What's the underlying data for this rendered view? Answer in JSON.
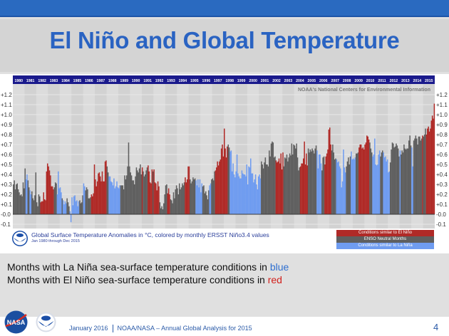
{
  "slide": {
    "title": "El Niño and Global Temperature",
    "line1_prefix": "Months with La Niña sea-surface temperature conditions in ",
    "line1_color_word": "blue",
    "line2_prefix": "Months with El Niño sea-surface temperature conditions in ",
    "line2_color_word": "red",
    "footer_date": "January 2016",
    "footer_title": "NOAA/NASA – Annual  Global  Analysis  for  2015",
    "page_number": "4"
  },
  "colors": {
    "el_nino": "#b02a27",
    "neutral": "#5f5f5f",
    "la_nina": "#6f9cf0",
    "header": "#1a1a8c"
  },
  "chart_data": {
    "type": "bar",
    "title": "Global Surface Temperature Anomalies in °C, colored by monthly ERSST Niño3.4 values",
    "subtitle": "Jan 1980 through Dec 2015",
    "source": "NOAA's National Centers for Environmental Information",
    "ylabel": "°C",
    "ylim": [
      -0.1,
      1.2
    ],
    "yticks": [
      "+1.2",
      "+1.1",
      "+1.0",
      "+0.9",
      "+0.8",
      "+0.7",
      "+0.6",
      "+0.5",
      "+0.4",
      "+0.3",
      "+0.2",
      "+0.1",
      "-0.0",
      "-0.1"
    ],
    "years": [
      "1980",
      "1981",
      "1982",
      "1983",
      "1984",
      "1985",
      "1986",
      "1987",
      "1988",
      "1989",
      "1990",
      "1991",
      "1992",
      "1993",
      "1994",
      "1995",
      "1996",
      "1997",
      "1998",
      "1999",
      "2000",
      "2001",
      "2002",
      "2003",
      "2004",
      "2005",
      "2006",
      "2007",
      "2008",
      "2009",
      "2010",
      "2011",
      "2012",
      "2013",
      "2014",
      "2015"
    ],
    "legend": [
      {
        "label": "Conditions similar to El Niño",
        "key": "E"
      },
      {
        "label": "ENSO Neutral Months",
        "key": "N"
      },
      {
        "label": "Conditions similar to La Niña",
        "key": "L"
      }
    ],
    "states_legend": {
      "E": "El Niño",
      "N": "Neutral",
      "L": "La Niña"
    },
    "monthly": [
      {
        "year": "1980",
        "values": [
          0.3,
          0.34,
          0.25,
          0.3,
          0.31,
          0.25,
          0.22,
          0.19,
          0.2,
          0.18,
          0.32,
          0.26
        ],
        "states": "NNNNNNNNNNNN"
      },
      {
        "year": "1981",
        "values": [
          0.46,
          0.35,
          0.4,
          0.34,
          0.27,
          0.24,
          0.2,
          0.23,
          0.16,
          0.14,
          0.19,
          0.42
        ],
        "states": "NLLNNLLNNNNN"
      },
      {
        "year": "1982",
        "values": [
          0.12,
          0.08,
          0.2,
          0.18,
          0.12,
          0.13,
          0.13,
          0.22,
          0.15,
          0.14,
          0.43,
          0.51
        ],
        "states": "NNNNEEEEEEEE"
      },
      {
        "year": "1983",
        "values": [
          0.48,
          0.44,
          0.39,
          0.28,
          0.28,
          0.25,
          0.27,
          0.32,
          0.31,
          0.2,
          0.43,
          0.26
        ],
        "states": "EEEEEENNNLLL"
      },
      {
        "year": "1984",
        "values": [
          0.27,
          0.22,
          0.16,
          0.14,
          0.1,
          0.13,
          0.11,
          0.16,
          0.12,
          0.08,
          0.03,
          -0.08
        ],
        "states": "LLNLLLLNNNLL"
      },
      {
        "year": "1985",
        "values": [
          0.17,
          0.09,
          0.18,
          0.19,
          0.13,
          0.14,
          0.08,
          0.13,
          0.14,
          0.11,
          0.12,
          0.19
        ],
        "states": "LLLLLLLLNNNN"
      },
      {
        "year": "1986",
        "values": [
          0.31,
          0.28,
          0.24,
          0.27,
          0.25,
          0.16,
          0.16,
          0.17,
          0.2,
          0.18,
          0.21,
          0.5
        ],
        "states": "LLNNNNNNEEEE"
      },
      {
        "year": "1987",
        "values": [
          0.35,
          0.28,
          0.33,
          0.41,
          0.42,
          0.38,
          0.33,
          0.43,
          0.33,
          0.33,
          0.53,
          0.54
        ],
        "states": "EEEEEEEEEEEE"
      },
      {
        "year": "1988",
        "values": [
          0.48,
          0.42,
          0.38,
          0.38,
          0.33,
          0.32,
          0.29,
          0.36,
          0.26,
          0.28,
          0.33,
          0.27
        ],
        "states": "NNLLLLLLLLLL"
      },
      {
        "year": "1989",
        "values": [
          0.26,
          0.29,
          0.29,
          0.29,
          0.29,
          0.25,
          0.39,
          0.35,
          0.39,
          0.48,
          0.72,
          0.48
        ],
        "states": "LLNNNNNNNNNN"
      },
      {
        "year": "1990",
        "values": [
          0.42,
          0.39,
          0.34,
          0.34,
          0.3,
          0.38,
          0.47,
          0.44,
          0.42,
          0.46,
          0.5,
          0.4
        ],
        "states": "NNNNNNNNNNNN"
      },
      {
        "year": "1991",
        "values": [
          0.47,
          0.43,
          0.38,
          0.4,
          0.44,
          0.47,
          0.49,
          0.43,
          0.32,
          0.31,
          0.45,
          0.43
        ],
        "states": "ENNNNNEEEEEN"
      },
      {
        "year": "1992",
        "values": [
          0.45,
          0.32,
          0.31,
          0.24,
          0.33,
          0.28,
          0.12,
          0.06,
          0.08,
          0.05,
          0.11,
          0.2
        ],
        "states": "EEEEEENNNNNN"
      },
      {
        "year": "1993",
        "values": [
          0.29,
          0.3,
          0.21,
          0.26,
          0.2,
          0.15,
          0.14,
          0.11,
          0.22,
          0.16,
          0.25,
          0.29
        ],
        "states": "NNEEENNNNNNN"
      },
      {
        "year": "1994",
        "values": [
          0.26,
          0.2,
          0.31,
          0.25,
          0.27,
          0.31,
          0.29,
          0.32,
          0.37,
          0.32,
          0.35,
          0.48
        ],
        "states": "NNNNNNNNEEEE"
      },
      {
        "year": "1995",
        "values": [
          0.48,
          0.35,
          0.31,
          0.33,
          0.37,
          0.35,
          0.36,
          0.34,
          0.29,
          0.35,
          0.27,
          0.35
        ],
        "states": "ENNNNNNLLLLL"
      },
      {
        "year": "1996",
        "values": [
          0.22,
          0.31,
          0.28,
          0.29,
          0.21,
          0.23,
          0.19,
          0.15,
          0.24,
          0.29,
          0.31,
          0.35
        ],
        "states": "LLNNNNNNNLLN"
      },
      {
        "year": "1997",
        "values": [
          0.36,
          0.34,
          0.43,
          0.44,
          0.47,
          0.53,
          0.49,
          0.53,
          0.55,
          0.66,
          0.7,
          0.58
        ],
        "states": "NNNEEEEEEEEE"
      },
      {
        "year": "1998",
        "values": [
          0.86,
          0.66,
          0.57,
          0.68,
          0.7,
          0.67,
          0.63,
          0.64,
          0.43,
          0.51,
          0.4,
          0.37
        ],
        "states": "EEEENNLLLLLL"
      },
      {
        "year": "1999",
        "values": [
          0.43,
          0.6,
          0.41,
          0.38,
          0.36,
          0.36,
          0.44,
          0.41,
          0.4,
          0.4,
          0.38,
          0.5
        ],
        "states": "LLLLLLLLLLLL"
      },
      {
        "year": "2000",
        "values": [
          0.3,
          0.48,
          0.47,
          0.56,
          0.41,
          0.41,
          0.32,
          0.35,
          0.4,
          0.3,
          0.25,
          0.38
        ],
        "states": "LLLLLLLLLLLL"
      },
      {
        "year": "2001",
        "values": [
          0.4,
          0.36,
          0.53,
          0.5,
          0.46,
          0.52,
          0.57,
          0.5,
          0.5,
          0.48,
          0.64,
          0.58
        ],
        "states": "LLNNNNNNNNNN"
      },
      {
        "year": "2002",
        "values": [
          0.71,
          0.73,
          0.72,
          0.57,
          0.58,
          0.54,
          0.52,
          0.53,
          0.56,
          0.51,
          0.61,
          0.45
        ],
        "states": "NNNNNEEEEEEE"
      },
      {
        "year": "2003",
        "values": [
          0.62,
          0.48,
          0.57,
          0.56,
          0.6,
          0.53,
          0.57,
          0.61,
          0.59,
          0.71,
          0.6,
          0.7
        ],
        "states": "ENNNNNNNNNNN"
      },
      {
        "year": "2004",
        "values": [
          0.69,
          0.66,
          0.71,
          0.57,
          0.44,
          0.47,
          0.48,
          0.51,
          0.51,
          0.56,
          0.73,
          0.5
        ],
        "states": "NNNNNNEEEEEE"
      },
      {
        "year": "2005",
        "values": [
          0.61,
          0.49,
          0.66,
          0.62,
          0.65,
          0.63,
          0.66,
          0.64,
          0.61,
          0.66,
          0.69,
          0.64
        ],
        "states": "EENNNNNNNNNL"
      },
      {
        "year": "2006",
        "values": [
          0.46,
          0.6,
          0.6,
          0.51,
          0.44,
          0.57,
          0.58,
          0.5,
          0.58,
          0.61,
          0.65,
          0.85
        ],
        "states": "LLLLNNNEEEEE"
      },
      {
        "year": "2007",
        "values": [
          0.87,
          0.7,
          0.64,
          0.7,
          0.62,
          0.55,
          0.56,
          0.55,
          0.52,
          0.53,
          0.48,
          0.46
        ],
        "states": "EENNNNNLLLLL"
      },
      {
        "year": "2008",
        "values": [
          0.27,
          0.33,
          0.65,
          0.47,
          0.42,
          0.48,
          0.53,
          0.57,
          0.5,
          0.58,
          0.63,
          0.55
        ],
        "states": "LLLLLNNNNNLL"
      },
      {
        "year": "2009",
        "values": [
          0.56,
          0.55,
          0.57,
          0.61,
          0.61,
          0.62,
          0.67,
          0.7,
          0.7,
          0.66,
          0.67,
          0.65
        ],
        "states": "LLLNNNEEEEEE"
      },
      {
        "year": "2010",
        "values": [
          0.7,
          0.72,
          0.79,
          0.78,
          0.75,
          0.72,
          0.66,
          0.62,
          0.58,
          0.6,
          0.76,
          0.5
        ],
        "states": "EEEEENNNLLLL"
      },
      {
        "year": "2011",
        "values": [
          0.49,
          0.5,
          0.6,
          0.64,
          0.58,
          0.62,
          0.64,
          0.62,
          0.57,
          0.58,
          0.53,
          0.55
        ],
        "states": "LLLLNNNLLLLL"
      },
      {
        "year": "2012",
        "values": [
          0.42,
          0.43,
          0.52,
          0.65,
          0.72,
          0.71,
          0.67,
          0.68,
          0.71,
          0.69,
          0.66,
          0.58
        ],
        "states": "LLNNNNNNNNNN"
      },
      {
        "year": "2013",
        "values": [
          0.64,
          0.6,
          0.64,
          0.62,
          0.7,
          0.66,
          0.65,
          0.66,
          0.66,
          0.74,
          0.79,
          0.69
        ],
        "states": "LNNNNNNNNNNN"
      },
      {
        "year": "2014",
        "values": [
          0.67,
          0.48,
          0.74,
          0.76,
          0.79,
          0.76,
          0.7,
          0.78,
          0.78,
          0.74,
          0.76,
          0.79
        ],
        "states": "LLNNNNNNNNNE"
      },
      {
        "year": "2015",
        "values": [
          0.78,
          0.8,
          0.86,
          0.8,
          0.86,
          0.88,
          0.83,
          0.86,
          0.94,
          0.99,
          0.96,
          1.11
        ],
        "states": "NNNEEEEEEEEE"
      }
    ]
  }
}
